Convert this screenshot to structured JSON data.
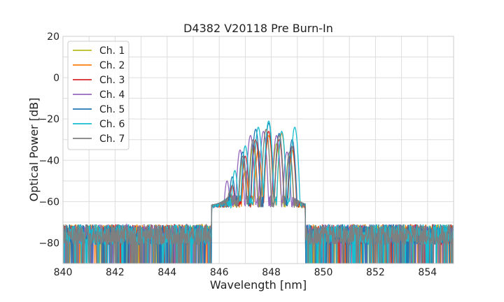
{
  "chart_data": {
    "type": "line",
    "title": "D4382 V20118 Pre Burn-In",
    "xlabel": "Wavelength [nm]",
    "ylabel": "Optical Power [dB]",
    "xlim": [
      840,
      855
    ],
    "ylim": [
      -90,
      20
    ],
    "xticks": [
      840,
      842,
      844,
      846,
      848,
      850,
      852,
      854
    ],
    "yticks": [
      20,
      0,
      -20,
      -40,
      -60,
      -80
    ],
    "grid": true,
    "legend_position": "top-left",
    "noise_floor": -76,
    "series": [
      {
        "name": "Ch. 1",
        "color": "#bcbd22",
        "peaks": [
          846.4,
          846.9,
          847.3,
          847.8,
          848.2,
          848.7
        ],
        "peak_levels": [
          -55,
          -40,
          -33,
          -25,
          -32,
          -38
        ]
      },
      {
        "name": "Ch. 2",
        "color": "#ff7f0e",
        "peaks": [
          846.6,
          847.0,
          847.5,
          847.9,
          848.4,
          848.8
        ],
        "peak_levels": [
          -60,
          -45,
          -35,
          -28,
          -27,
          -35
        ]
      },
      {
        "name": "Ch. 3",
        "color": "#d62728",
        "peaks": [
          846.5,
          847.0,
          847.4,
          847.9,
          848.3,
          848.8
        ],
        "peak_levels": [
          -52,
          -38,
          -30,
          -26,
          -30,
          -33
        ]
      },
      {
        "name": "Ch. 4",
        "color": "#9467bd",
        "peaks": [
          846.3,
          846.8,
          847.2,
          847.7,
          848.2,
          848.6
        ],
        "peak_levels": [
          -50,
          -35,
          -28,
          -26,
          -28,
          -36
        ]
      },
      {
        "name": "Ch. 5",
        "color": "#1f77b4",
        "peaks": [
          846.5,
          846.9,
          847.4,
          847.9,
          848.3,
          848.8
        ],
        "peak_levels": [
          -48,
          -36,
          -25,
          -22,
          -27,
          -30
        ]
      },
      {
        "name": "Ch. 6",
        "color": "#17becf",
        "peaks": [
          846.6,
          847.0,
          847.5,
          847.9,
          848.4,
          848.9
        ],
        "peak_levels": [
          -45,
          -33,
          -24,
          -21,
          -26,
          -24
        ]
      },
      {
        "name": "Ch. 7",
        "color": "#7f7f7f",
        "peaks": [
          846.4,
          846.9,
          847.3,
          847.8,
          848.3,
          848.7
        ],
        "peak_levels": [
          -55,
          -38,
          -30,
          -25,
          -28,
          -36
        ]
      }
    ]
  }
}
